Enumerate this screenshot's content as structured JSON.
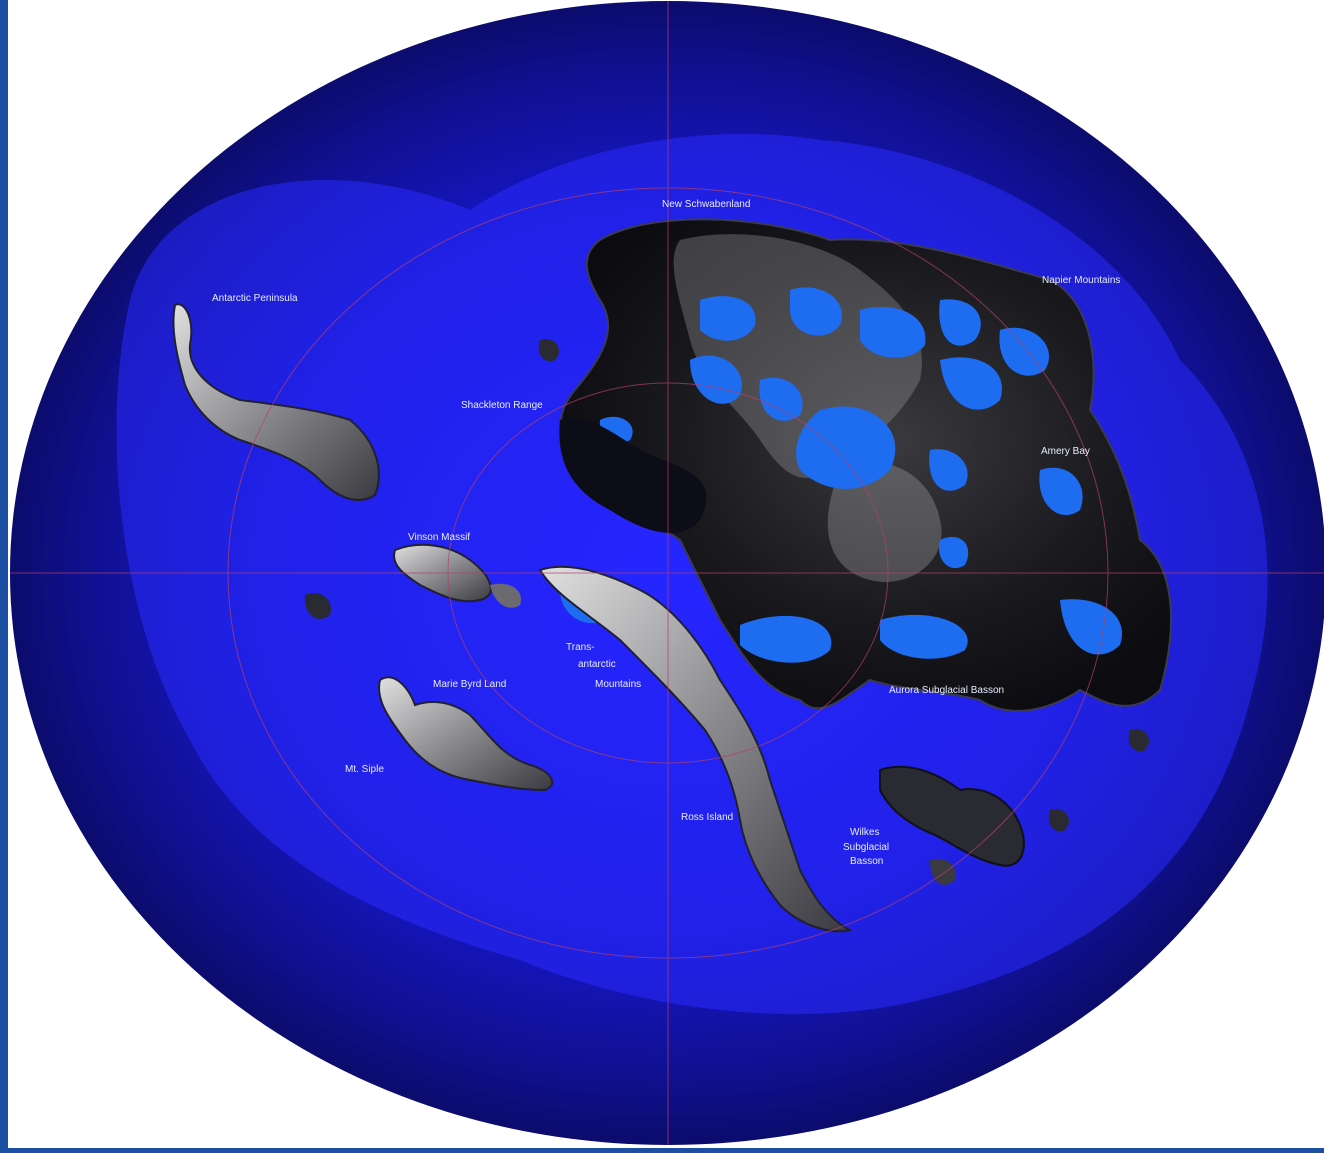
{
  "map": {
    "colors": {
      "ocean_deep": "#0a0a55",
      "ocean_shelf": "#1a1ad8",
      "ice_shelf_glow": "#2a2aff",
      "land_dark": "#141418",
      "land_highlight": "#c8c8c8",
      "lakes": "#1e6cf0",
      "grid_lines": "#b0406a",
      "frame_accent": "#1c4fa2"
    },
    "labels": {
      "new_schwabenland": "New Schwabenland",
      "napier_mountains": "Napier Mountains",
      "antarctic_peninsula": "Antarctic Peninsula",
      "shackleton_range": "Shackleton Range",
      "amery_bay": "Amery Bay",
      "vinson_massif": "Vinson Massif",
      "trans_line1": "Trans-",
      "trans_line2": "antarctic",
      "trans_line3": "Mountains",
      "marie_byrd_land": "Marie Byrd Land",
      "aurora_basin": "Aurora Subglacial Basson",
      "mt_siple": "Mt. Siple",
      "ross_island": "Ross Island",
      "wilkes_line1": "Wilkes",
      "wilkes_line2": "Subglacial",
      "wilkes_line3": "Basson"
    }
  }
}
